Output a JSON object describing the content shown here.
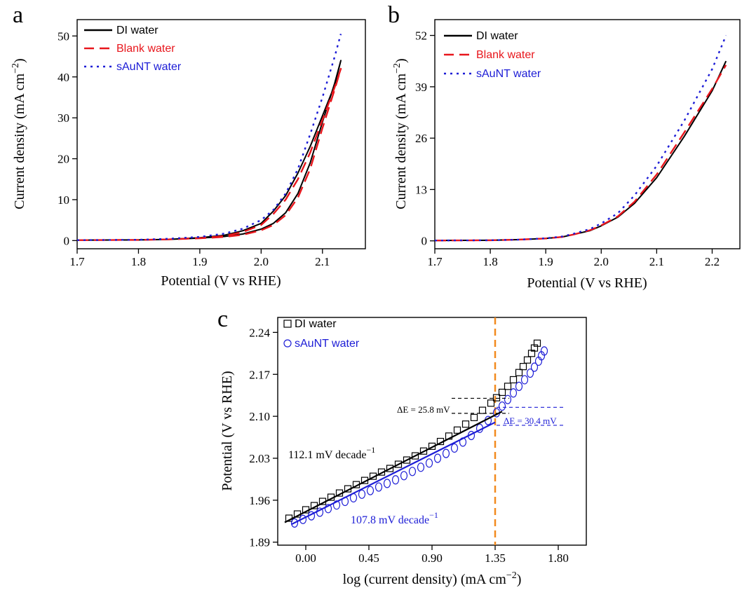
{
  "chart_data": [
    {
      "panel": "a",
      "type": "line",
      "title": "",
      "xlabel": "Potential (V vs RHE)",
      "ylabel": "Current density (mA cm−2)",
      "xlim": [
        1.7,
        2.17
      ],
      "ylim": [
        -2,
        54
      ],
      "xticks": [
        "1.7",
        "1.8",
        "1.9",
        "2.0",
        "2.1"
      ],
      "yticks": [
        "0",
        "10",
        "20",
        "30",
        "40",
        "50"
      ],
      "legend_position": "top-left",
      "series": [
        {
          "name": "DI water",
          "color": "#000000",
          "style": "solid",
          "x": [
            1.7,
            1.8,
            1.85,
            1.9,
            1.94,
            1.97,
            2.0,
            2.02,
            2.04,
            2.06,
            2.08,
            2.1,
            2.12,
            2.13,
            2.12,
            2.1,
            2.08,
            2.06,
            2.04,
            2.02,
            2.0,
            1.97,
            1.94,
            1.9,
            1.85,
            1.8,
            1.7
          ],
          "y": [
            0.1,
            0.15,
            0.3,
            0.6,
            1.0,
            1.6,
            2.8,
            4.2,
            6.8,
            11.5,
            19,
            29,
            38.5,
            44,
            38,
            30.5,
            23,
            16.5,
            11,
            7.2,
            4.2,
            2.4,
            1.3,
            0.7,
            0.3,
            0.15,
            0.1
          ]
        },
        {
          "name": "Blank water",
          "color": "#e8161c",
          "style": "dashed",
          "x": [
            1.7,
            1.8,
            1.85,
            1.9,
            1.94,
            1.97,
            2.0,
            2.02,
            2.04,
            2.06,
            2.08,
            2.1,
            2.12,
            2.13,
            2.12,
            2.1,
            2.08,
            2.06,
            2.04,
            2.02,
            2.0,
            1.97,
            1.94,
            1.9,
            1.85,
            1.8,
            1.7
          ],
          "y": [
            0.1,
            0.15,
            0.3,
            0.55,
            0.9,
            1.4,
            2.5,
            3.8,
            6.2,
            10.5,
            17.5,
            27.5,
            37,
            42,
            37.5,
            29.5,
            21.5,
            15,
            10,
            6.5,
            3.8,
            2.1,
            1.1,
            0.6,
            0.3,
            0.15,
            0.1
          ]
        },
        {
          "name": "sAuNT water",
          "color": "#1c1cd6",
          "style": "dotted",
          "x": [
            1.7,
            1.8,
            1.85,
            1.9,
            1.94,
            1.97,
            2.0,
            2.02,
            2.04,
            2.06,
            2.08,
            2.1,
            2.12,
            2.13
          ],
          "y": [
            0.1,
            0.2,
            0.45,
            0.9,
            1.7,
            2.9,
            5.0,
            7.5,
            11.5,
            17.5,
            26,
            35,
            45,
            50.5
          ]
        }
      ]
    },
    {
      "panel": "b",
      "type": "line",
      "title": "",
      "xlabel": "Potential (V vs RHE)",
      "ylabel": "Current density (mA cm−2)",
      "xlim": [
        1.7,
        2.25
      ],
      "ylim": [
        -2,
        56
      ],
      "xticks": [
        "1.7",
        "1.8",
        "1.9",
        "2.0",
        "2.1",
        "2.2"
      ],
      "yticks": [
        "0",
        "13",
        "26",
        "39",
        "52"
      ],
      "legend_position": "top-left",
      "series": [
        {
          "name": "DI water",
          "color": "#000000",
          "style": "solid",
          "x": [
            1.7,
            1.8,
            1.85,
            1.9,
            1.93,
            1.95,
            1.98,
            2.0,
            2.03,
            2.06,
            2.1,
            2.15,
            2.2,
            2.225
          ],
          "y": [
            0.1,
            0.15,
            0.3,
            0.6,
            1.0,
            1.6,
            2.6,
            3.8,
            6.0,
            9.5,
            16,
            26.5,
            38,
            45.5
          ]
        },
        {
          "name": "Blank water",
          "color": "#e8161c",
          "style": "dashed",
          "x": [
            1.7,
            1.8,
            1.85,
            1.9,
            1.93,
            1.95,
            1.98,
            2.0,
            2.03,
            2.06,
            2.1,
            2.15,
            2.2,
            2.225
          ],
          "y": [
            0.1,
            0.15,
            0.3,
            0.6,
            1.0,
            1.6,
            2.7,
            3.9,
            6.2,
            9.9,
            16.8,
            27.5,
            38.5,
            44.5
          ]
        },
        {
          "name": "sAuNT water",
          "color": "#1c1cd6",
          "style": "dotted",
          "x": [
            1.7,
            1.8,
            1.85,
            1.9,
            1.93,
            1.95,
            1.98,
            2.0,
            2.03,
            2.06,
            2.1,
            2.15,
            2.2,
            2.225
          ],
          "y": [
            0.1,
            0.15,
            0.3,
            0.65,
            1.1,
            1.8,
            3.0,
            4.4,
            7.0,
            11.5,
            19,
            30.5,
            43.5,
            52
          ]
        }
      ]
    },
    {
      "panel": "c",
      "type": "scatter",
      "title": "",
      "xlabel": "log (current density) (mA cm−2)",
      "ylabel": "Potential (V vs RHE)",
      "xlim": [
        -0.2,
        2.0
      ],
      "ylim": [
        1.885,
        2.265
      ],
      "xticks": [
        "0.00",
        "0.45",
        "0.90",
        "1.35",
        "1.80"
      ],
      "yticks": [
        "1.89",
        "1.96",
        "2.03",
        "2.10",
        "2.17",
        "2.24"
      ],
      "legend_position": "top-left",
      "series": [
        {
          "name": "DI water",
          "color": "#000000",
          "marker": "square",
          "x": [
            -0.12,
            -0.06,
            0.0,
            0.06,
            0.12,
            0.18,
            0.24,
            0.3,
            0.36,
            0.42,
            0.48,
            0.54,
            0.6,
            0.66,
            0.72,
            0.78,
            0.84,
            0.9,
            0.96,
            1.02,
            1.08,
            1.14,
            1.2,
            1.26,
            1.32,
            1.36,
            1.4,
            1.44,
            1.48,
            1.52,
            1.55,
            1.58,
            1.61,
            1.63,
            1.65
          ],
          "y": [
            1.93,
            1.937,
            1.944,
            1.951,
            1.958,
            1.965,
            1.972,
            1.979,
            1.986,
            1.993,
            2.0,
            2.007,
            2.013,
            2.02,
            2.027,
            2.034,
            2.042,
            2.05,
            2.058,
            2.067,
            2.077,
            2.087,
            2.098,
            2.11,
            2.122,
            2.131,
            2.14,
            2.15,
            2.161,
            2.173,
            2.183,
            2.194,
            2.205,
            2.214,
            2.222
          ]
        },
        {
          "name": "sAuNT water",
          "color": "#1c1cd6",
          "marker": "circle",
          "x": [
            -0.08,
            -0.02,
            0.04,
            0.1,
            0.16,
            0.22,
            0.28,
            0.34,
            0.4,
            0.46,
            0.52,
            0.58,
            0.64,
            0.7,
            0.76,
            0.82,
            0.88,
            0.94,
            1.0,
            1.06,
            1.12,
            1.18,
            1.24,
            1.3,
            1.36,
            1.4,
            1.44,
            1.48,
            1.52,
            1.56,
            1.6,
            1.63,
            1.66,
            1.68,
            1.7
          ],
          "y": [
            1.922,
            1.928,
            1.934,
            1.94,
            1.946,
            1.952,
            1.958,
            1.964,
            1.97,
            1.976,
            1.982,
            1.988,
            1.994,
            2.001,
            2.008,
            2.015,
            2.022,
            2.03,
            2.038,
            2.047,
            2.057,
            2.068,
            2.08,
            2.093,
            2.106,
            2.117,
            2.128,
            2.139,
            2.15,
            2.161,
            2.172,
            2.182,
            2.192,
            2.201,
            2.209
          ]
        }
      ],
      "fit_lines": [
        {
          "name": "DI water Tafel fit",
          "color": "#000000",
          "x": [
            -0.15,
            1.4
          ],
          "y": [
            1.923,
            2.108
          ]
        },
        {
          "name": "sAuNT water Tafel fit",
          "color": "#1c1cd6",
          "x": [
            -0.1,
            1.35
          ],
          "y": [
            1.92,
            2.09
          ]
        }
      ],
      "reference_line": {
        "x": 1.35,
        "color": "#f28a1f"
      },
      "annotations": {
        "delta_e_di": "ΔE = 25.8 mV",
        "delta_e_sau": "ΔE = 30.4 mV",
        "slope_di": "112.1 mV decade",
        "slope_sau": "107.8 mV decade",
        "exponent": "−1"
      },
      "delta_brackets": {
        "di": {
          "y_top": 2.13,
          "y_bottom": 2.105,
          "x_start": 1.04,
          "x_end": 1.45
        },
        "sau": {
          "y_top": 2.115,
          "y_bottom": 2.085,
          "x_start": 1.36,
          "x_end": 1.85
        }
      }
    }
  ],
  "panel_letters": {
    "a": "a",
    "b": "b",
    "c": "c"
  }
}
